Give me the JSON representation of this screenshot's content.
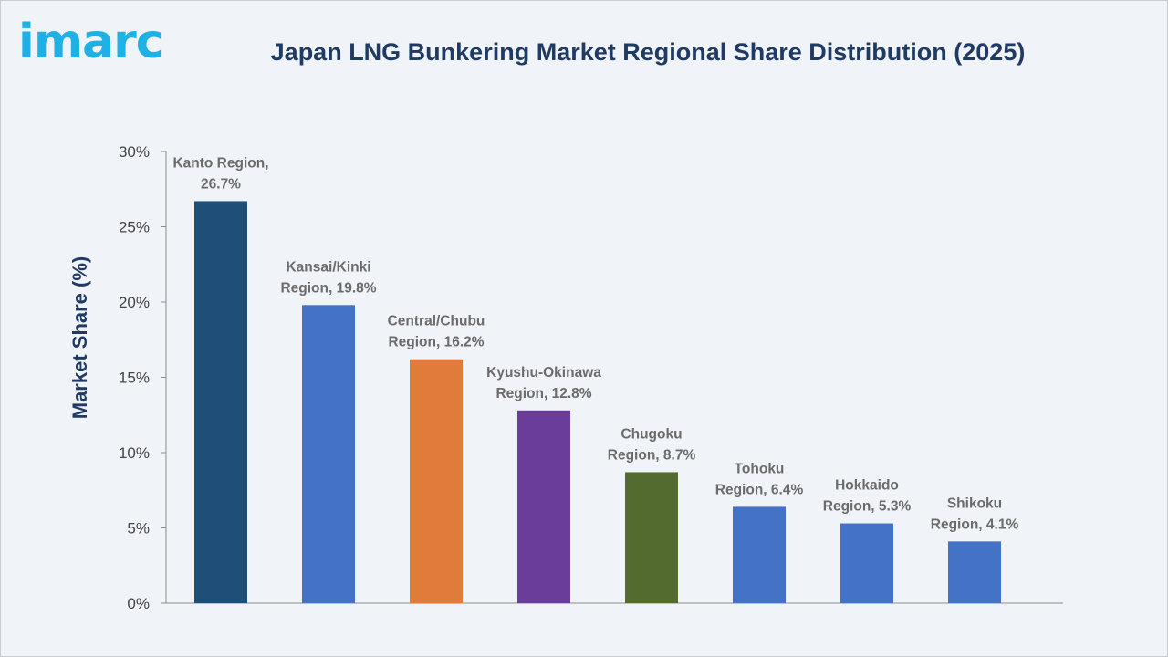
{
  "logo": {
    "text": "imarc"
  },
  "chart_data": {
    "type": "bar",
    "title": "Japan LNG Bunkering Market Regional Share Distribution (2025)",
    "ylabel": "Market Share (%)",
    "xlabel": "",
    "ylim": [
      0,
      30
    ],
    "yticks": [
      "0%",
      "5%",
      "10%",
      "15%",
      "20%",
      "25%",
      "30%"
    ],
    "grid": false,
    "categories": [
      "Kanto Region",
      "Kansai/Kinki Region",
      "Central/Chubu Region",
      "Kyushu-Okinawa Region",
      "Chugoku Region",
      "Tohoku Region",
      "Hokkaido Region",
      "Shikoku Region"
    ],
    "values": [
      26.7,
      19.8,
      16.2,
      12.8,
      8.7,
      6.4,
      5.3,
      4.1
    ],
    "data_labels": [
      [
        "Kanto Region,",
        "26.7%"
      ],
      [
        "Kansai/Kinki",
        "Region, 19.8%"
      ],
      [
        "Central/Chubu",
        "Region, 16.2%"
      ],
      [
        "Kyushu-Okinawa",
        "Region, 12.8%"
      ],
      [
        "Chugoku",
        "Region, 8.7%"
      ],
      [
        "Tohoku",
        "Region, 6.4%"
      ],
      [
        "Hokkaido",
        "Region, 5.3%"
      ],
      [
        "Shikoku",
        "Region, 4.1%"
      ]
    ],
    "colors": [
      "#1f4e79",
      "#4472c4",
      "#e07b39",
      "#6a3d9a",
      "#546b2f",
      "#4472c4",
      "#4472c4",
      "#4472c4"
    ]
  }
}
